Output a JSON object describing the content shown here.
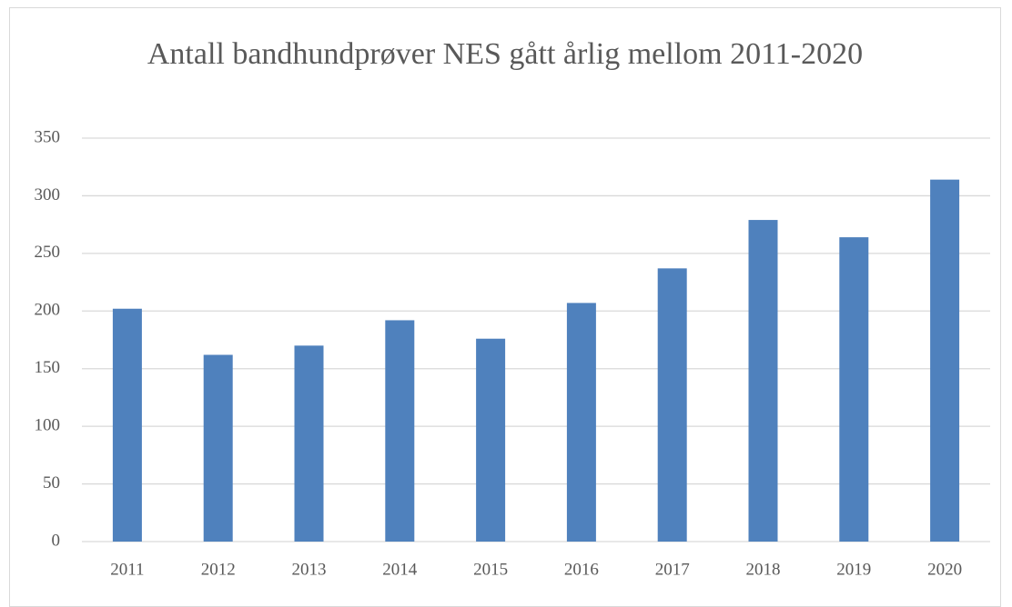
{
  "chart_data": {
    "type": "bar",
    "title": "Antall bandhundprøver NES gått årlig mellom 2011-2020",
    "categories": [
      "2011",
      "2012",
      "2013",
      "2014",
      "2015",
      "2016",
      "2017",
      "2018",
      "2019",
      "2020"
    ],
    "values": [
      202,
      162,
      170,
      192,
      176,
      207,
      237,
      279,
      264,
      314
    ],
    "color": "#4f81bd",
    "ylim": [
      0,
      350
    ],
    "yticks": [
      0,
      50,
      100,
      150,
      200,
      250,
      300,
      350
    ],
    "grid": true
  }
}
